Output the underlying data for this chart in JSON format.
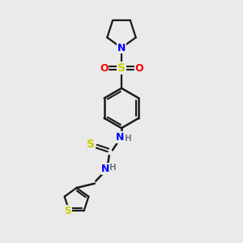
{
  "background_color": "#eaeaea",
  "bond_color": "#1a1a1a",
  "N_color": "#0000ff",
  "O_color": "#ff0000",
  "S_color": "#cccc00",
  "H_color": "#708090",
  "figsize": [
    3.0,
    3.0
  ],
  "dpi": 100,
  "xlim": [
    0,
    10
  ],
  "ylim": [
    0,
    10
  ]
}
